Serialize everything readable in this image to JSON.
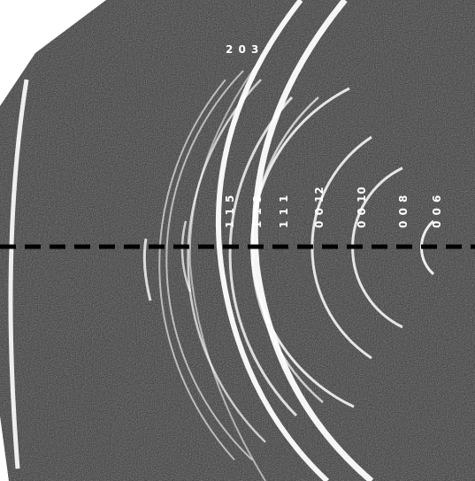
{
  "image": {
    "description_free": true,
    "background": "#ffffff",
    "detector_color": "#3a3a3a",
    "ring_color": "#ffffff",
    "label_color": "#ffffff",
    "beamline_color": "#000000"
  },
  "labels": {
    "top": "2 0 3",
    "l115": "1 1 5",
    "l113": "1 1 3",
    "l111": "1 1 1",
    "l0012": "0 0 12",
    "l0010": "0 0 10",
    "l008": "0 0 8",
    "l006": "0 0 6"
  }
}
